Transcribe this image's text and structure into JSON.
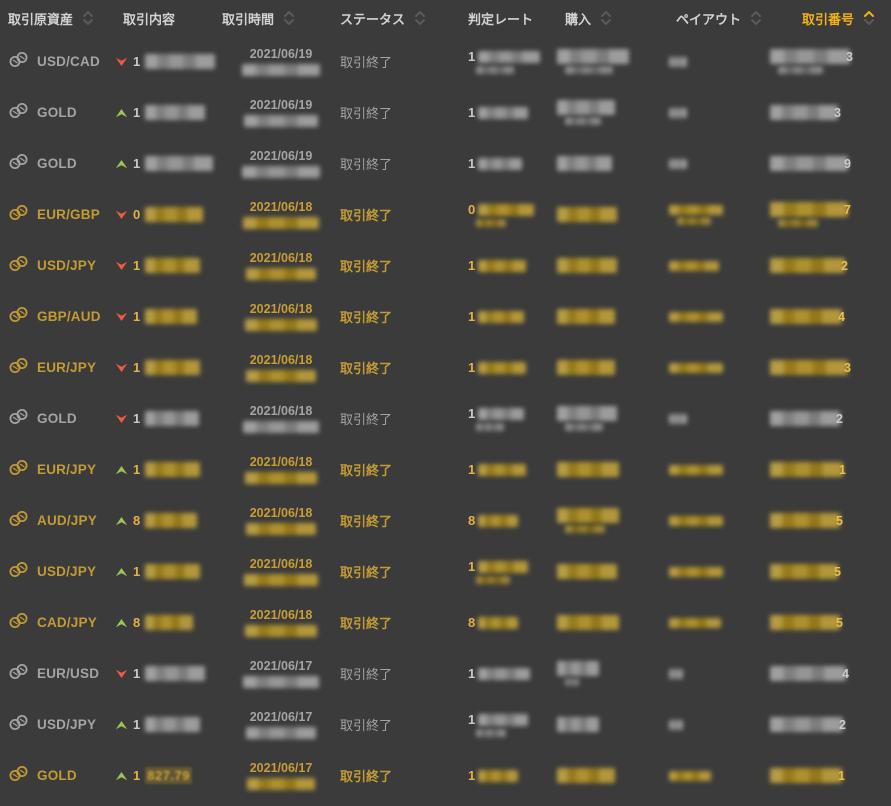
{
  "colors": {
    "background": "#3b3b3b",
    "accent_gold": "#f0b11a",
    "win_text": "#c39b34",
    "loss_text": "#a4a4a4",
    "up_arrow_green": "#9cc653",
    "down_arrow_red": "#f15b40"
  },
  "header": {
    "columns": [
      {
        "label": "取引原資産",
        "sortable": true,
        "active": false
      },
      {
        "label": "取引内容",
        "sortable": false,
        "active": false
      },
      {
        "label": "取引時間",
        "sortable": true,
        "active": false
      },
      {
        "label": "ステータス",
        "sortable": true,
        "active": false
      },
      {
        "label": "判定レート",
        "sortable": false,
        "active": false
      },
      {
        "label": "購入",
        "sortable": true,
        "active": false
      },
      {
        "label": "ペイアウト",
        "sortable": true,
        "active": false
      },
      {
        "label": "取引番号",
        "sortable": true,
        "active": true
      }
    ]
  },
  "rows": [
    {
      "asset": "USD/CAD",
      "result": "loss",
      "direction": "down",
      "content_prefix": "1",
      "content_ghost": "",
      "date": "2021/06/19",
      "status": "取引終了",
      "rate_prefix": "1",
      "number_suffix": "3",
      "blurs": {
        "content": 70,
        "time": 78,
        "rate": 62,
        "rate_sub": 38,
        "buy": 72,
        "buy_sub": 48,
        "payout": 18,
        "payout_sub": 0,
        "number": 80,
        "number_sub": 45
      }
    },
    {
      "asset": "GOLD",
      "result": "loss",
      "direction": "up",
      "content_prefix": "1",
      "content_ghost": "",
      "date": "2021/06/19",
      "status": "取引終了",
      "rate_prefix": "1",
      "number_suffix": "3",
      "blurs": {
        "content": 60,
        "time": 74,
        "rate": 50,
        "rate_sub": 0,
        "buy": 58,
        "buy_sub": 36,
        "payout": 18,
        "payout_sub": 0,
        "number": 68,
        "number_sub": 0
      }
    },
    {
      "asset": "GOLD",
      "result": "loss",
      "direction": "up",
      "content_prefix": "1",
      "content_ghost": "",
      "date": "2021/06/19",
      "status": "取引終了",
      "rate_prefix": "1",
      "number_suffix": "9",
      "blurs": {
        "content": 68,
        "time": 78,
        "rate": 44,
        "rate_sub": 0,
        "buy": 55,
        "buy_sub": 0,
        "payout": 18,
        "payout_sub": 0,
        "number": 78,
        "number_sub": 0
      }
    },
    {
      "asset": "EUR/GBP",
      "result": "win",
      "direction": "down",
      "content_prefix": "0",
      "content_ghost": "",
      "date": "2021/06/18",
      "status": "取引終了",
      "rate_prefix": "0",
      "number_suffix": "7",
      "blurs": {
        "content": 58,
        "time": 76,
        "rate": 56,
        "rate_sub": 30,
        "buy": 60,
        "buy_sub": 0,
        "payout": 54,
        "payout_sub": 34,
        "number": 78,
        "number_sub": 40
      }
    },
    {
      "asset": "USD/JPY",
      "result": "win",
      "direction": "down",
      "content_prefix": "1",
      "content_ghost": "",
      "date": "2021/06/18",
      "status": "取引終了",
      "rate_prefix": "1",
      "number_suffix": "2",
      "blurs": {
        "content": 55,
        "time": 70,
        "rate": 48,
        "rate_sub": 0,
        "buy": 60,
        "buy_sub": 0,
        "payout": 50,
        "payout_sub": 0,
        "number": 75,
        "number_sub": 0
      }
    },
    {
      "asset": "GBP/AUD",
      "result": "win",
      "direction": "down",
      "content_prefix": "1",
      "content_ghost": "",
      "date": "2021/06/18",
      "status": "取引終了",
      "rate_prefix": "1",
      "number_suffix": "4",
      "blurs": {
        "content": 52,
        "time": 72,
        "rate": 46,
        "rate_sub": 0,
        "buy": 58,
        "buy_sub": 0,
        "payout": 54,
        "payout_sub": 0,
        "number": 72,
        "number_sub": 0
      }
    },
    {
      "asset": "EUR/JPY",
      "result": "win",
      "direction": "down",
      "content_prefix": "1",
      "content_ghost": "",
      "date": "2021/06/18",
      "status": "取引終了",
      "rate_prefix": "1",
      "number_suffix": "3",
      "blurs": {
        "content": 55,
        "time": 70,
        "rate": 48,
        "rate_sub": 0,
        "buy": 58,
        "buy_sub": 0,
        "payout": 54,
        "payout_sub": 0,
        "number": 78,
        "number_sub": 0
      }
    },
    {
      "asset": "GOLD",
      "result": "loss",
      "direction": "down",
      "content_prefix": "1",
      "content_ghost": "",
      "date": "2021/06/18",
      "status": "取引終了",
      "rate_prefix": "1",
      "number_suffix": "2",
      "blurs": {
        "content": 54,
        "time": 76,
        "rate": 46,
        "rate_sub": 28,
        "buy": 60,
        "buy_sub": 38,
        "payout": 18,
        "payout_sub": 0,
        "number": 70,
        "number_sub": 0
      }
    },
    {
      "asset": "EUR/JPY",
      "result": "win",
      "direction": "up",
      "content_prefix": "1",
      "content_ghost": "",
      "date": "2021/06/18",
      "status": "取引終了",
      "rate_prefix": "1",
      "number_suffix": "1",
      "blurs": {
        "content": 55,
        "time": 72,
        "rate": 48,
        "rate_sub": 0,
        "buy": 62,
        "buy_sub": 0,
        "payout": 54,
        "payout_sub": 0,
        "number": 73,
        "number_sub": 0
      }
    },
    {
      "asset": "AUD/JPY",
      "result": "win",
      "direction": "up",
      "content_prefix": "8",
      "content_ghost": "",
      "date": "2021/06/18",
      "status": "取引終了",
      "rate_prefix": "8",
      "number_suffix": "5",
      "blurs": {
        "content": 52,
        "time": 70,
        "rate": 40,
        "rate_sub": 0,
        "buy": 62,
        "buy_sub": 40,
        "payout": 54,
        "payout_sub": 0,
        "number": 70,
        "number_sub": 0
      }
    },
    {
      "asset": "USD/JPY",
      "result": "win",
      "direction": "up",
      "content_prefix": "1",
      "content_ghost": "",
      "date": "2021/06/18",
      "status": "取引終了",
      "rate_prefix": "1",
      "number_suffix": "5",
      "blurs": {
        "content": 55,
        "time": 74,
        "rate": 50,
        "rate_sub": 34,
        "buy": 60,
        "buy_sub": 0,
        "payout": 54,
        "payout_sub": 0,
        "number": 68,
        "number_sub": 0
      }
    },
    {
      "asset": "CAD/JPY",
      "result": "win",
      "direction": "up",
      "content_prefix": "8",
      "content_ghost": "",
      "date": "2021/06/18",
      "status": "取引終了",
      "rate_prefix": "8",
      "number_suffix": "5",
      "blurs": {
        "content": 48,
        "time": 72,
        "rate": 40,
        "rate_sub": 0,
        "buy": 62,
        "buy_sub": 0,
        "payout": 52,
        "payout_sub": 0,
        "number": 70,
        "number_sub": 0
      }
    },
    {
      "asset": "EUR/USD",
      "result": "loss",
      "direction": "down",
      "content_prefix": "1",
      "content_ghost": "",
      "date": "2021/06/17",
      "status": "取引終了",
      "rate_prefix": "1",
      "number_suffix": "4",
      "blurs": {
        "content": 60,
        "time": 76,
        "rate": 52,
        "rate_sub": 0,
        "buy": 42,
        "buy_sub": 14,
        "payout": 14,
        "payout_sub": 0,
        "number": 76,
        "number_sub": 0
      }
    },
    {
      "asset": "USD/JPY",
      "result": "loss",
      "direction": "up",
      "content_prefix": "1",
      "content_ghost": "",
      "date": "2021/06/17",
      "status": "取引終了",
      "rate_prefix": "1",
      "number_suffix": "2",
      "blurs": {
        "content": 55,
        "time": 70,
        "rate": 50,
        "rate_sub": 30,
        "buy": 42,
        "buy_sub": 0,
        "payout": 14,
        "payout_sub": 0,
        "number": 73,
        "number_sub": 0
      }
    },
    {
      "asset": "GOLD",
      "result": "win",
      "direction": "up",
      "content_prefix": "1",
      "content_ghost": "827.79",
      "date": "2021/06/17",
      "status": "取引終了",
      "rate_prefix": "1",
      "number_suffix": "1",
      "blurs": {
        "content": 0,
        "time": 68,
        "rate": 40,
        "rate_sub": 0,
        "buy": 58,
        "buy_sub": 0,
        "payout": 42,
        "payout_sub": 0,
        "number": 72,
        "number_sub": 0
      }
    }
  ]
}
